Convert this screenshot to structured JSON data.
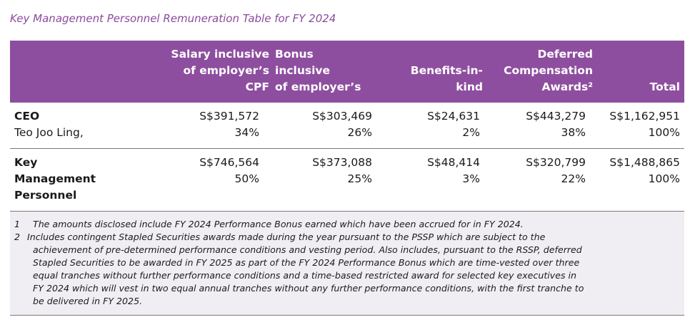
{
  "caption": "Key Management Personnel Remuneration Table for FY 2024",
  "headers": {
    "salary": [
      "Salary inclusive",
      "of employer’s",
      "CPF"
    ],
    "bonus": [
      "Bonus",
      "inclusive",
      "of employer’s"
    ],
    "benefits": [
      "Benefits-in-",
      "kind"
    ],
    "deferred": [
      "Deferred",
      "Compensation",
      "Awards²"
    ],
    "total": [
      "Total"
    ]
  },
  "rows": [
    {
      "name_lines": [
        "CEO",
        "Teo Joo Ling,"
      ],
      "salary": [
        "S$391,572",
        "34%"
      ],
      "bonus": [
        "S$303,469",
        "26%"
      ],
      "benefits": [
        "S$24,631",
        "2%"
      ],
      "deferred": [
        "S$443,279",
        "38%"
      ],
      "total": [
        "S$1,162,951",
        "100%"
      ]
    },
    {
      "name_lines": [
        "Key",
        "Management",
        "Personnel"
      ],
      "salary": [
        "S$746,564",
        "50%"
      ],
      "bonus": [
        "S$373,088",
        "25%"
      ],
      "benefits": [
        "S$48,414",
        "3%"
      ],
      "deferred": [
        "S$320,799",
        "22%"
      ],
      "total": [
        "S$1,488,865",
        "100%"
      ]
    }
  ],
  "notes": [
    {
      "num": "1",
      "lines": [
        "The amounts disclosed include FY 2024 Performance Bonus earned which have been accrued for in FY 2024."
      ]
    },
    {
      "num": "2",
      "lines": [
        "Includes contingent Stapled Securities awards made during the year pursuant to the PSSP which are subject to the",
        "achievement of pre-determined performance conditions and vesting period. Also includes, pursuant to the RSSP, deferred",
        "Stapled Securities to be awarded in FY 2025 as part of the FY 2024 Performance Bonus which are time-vested over three",
        "equal tranches without further performance conditions and a time-based restricted award for selected key executives in",
        "FY 2024 which will vest in two equal annual tranches without any further performance conditions, with the first tranche to",
        "be delivered in FY 2025."
      ]
    }
  ]
}
